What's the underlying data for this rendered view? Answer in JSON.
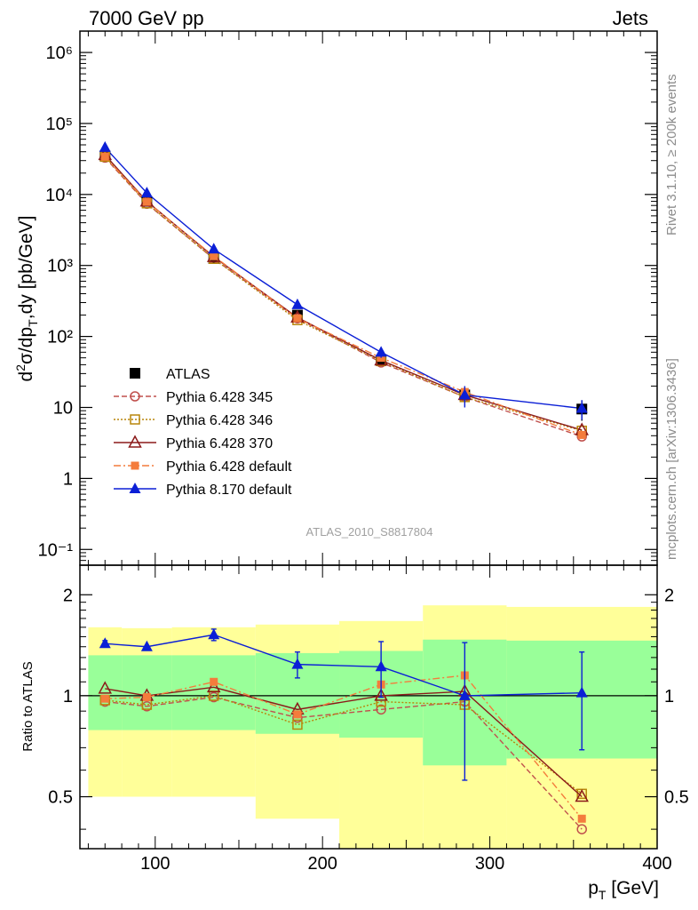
{
  "header": {
    "left": "7000 GeV pp",
    "right": "Jets"
  },
  "side_notes": {
    "rivet": "Rivet 3.1.10, ≥ 200k events",
    "source": "mcplots.cern.ch [arXiv:1306.3436]"
  },
  "watermark": "ATLAS_2010_S8817804",
  "chart_data": [
    {
      "type": "line",
      "panel": "main",
      "ylabel": "d²σ/dp_T,dy [pb/GeV]",
      "yscale": "log",
      "ylim": [
        0.06,
        2000000
      ],
      "xlim": [
        55,
        400
      ],
      "ytick_labels": [
        "10⁻¹",
        "1",
        "10",
        "10²",
        "10³",
        "10⁴",
        "10⁵",
        "10⁶"
      ],
      "series": [
        {
          "name": "ATLAS",
          "color": "#000000",
          "marker": "square-filled",
          "dash": "none",
          "x": [
            70,
            95,
            135,
            185,
            235,
            285,
            355
          ],
          "y": [
            35000,
            8000,
            1250,
            200,
            46,
            15,
            9.5
          ],
          "err": [
            3000,
            700,
            120,
            25,
            6,
            3,
            3
          ]
        },
        {
          "name": "Pythia 6.428 345",
          "color": "#c0504d",
          "marker": "circle-open",
          "dash": "6,3",
          "x": [
            70,
            95,
            135,
            185,
            235,
            285,
            355
          ],
          "y": [
            33000,
            7400,
            1240,
            180,
            43,
            14,
            3.9
          ]
        },
        {
          "name": "Pythia 6.428 346",
          "color": "#b8860b",
          "marker": "square-open",
          "dash": "2,2",
          "x": [
            70,
            95,
            135,
            185,
            235,
            285,
            355
          ],
          "y": [
            34000,
            7500,
            1240,
            170,
            45,
            14,
            4.7
          ]
        },
        {
          "name": "Pythia 6.428 370",
          "color": "#8b1a1a",
          "marker": "triangle-open",
          "dash": "none",
          "x": [
            70,
            95,
            135,
            185,
            235,
            285,
            355
          ],
          "y": [
            36000,
            8000,
            1320,
            185,
            46,
            15,
            4.8
          ]
        },
        {
          "name": "Pythia 6.428 default",
          "color": "#f47c3c",
          "marker": "square-filled-small",
          "dash": "8,3,2,3",
          "x": [
            70,
            95,
            135,
            185,
            235,
            285,
            355
          ],
          "y": [
            34000,
            7900,
            1350,
            180,
            50,
            16.5,
            4.1
          ]
        },
        {
          "name": "Pythia 8.170 default",
          "color": "#0b1fd6",
          "marker": "triangle-filled",
          "dash": "none",
          "x": [
            70,
            95,
            135,
            185,
            235,
            285,
            355
          ],
          "y": [
            46000,
            10500,
            1700,
            280,
            60,
            15,
            9.7
          ],
          "err": [
            0,
            0,
            0,
            0,
            10,
            5,
            3
          ]
        }
      ]
    },
    {
      "type": "line",
      "panel": "ratio",
      "ylabel": "Ratio to ATLAS",
      "xlabel": "p_T [GeV]",
      "xlim": [
        55,
        400
      ],
      "ylim": [
        0.35,
        2.45
      ],
      "ytick_labels": [
        "0.5",
        "1",
        "2"
      ],
      "xtick_labels": [
        "100",
        "200",
        "300",
        "400"
      ],
      "bands": [
        {
          "x0": 60,
          "x1": 80,
          "lo": 0.5,
          "hi": 1.6,
          "lo_inner": 0.79,
          "hi_inner": 1.32
        },
        {
          "x0": 80,
          "x1": 110,
          "lo": 0.5,
          "hi": 1.59,
          "lo_inner": 0.79,
          "hi_inner": 1.32
        },
        {
          "x0": 110,
          "x1": 160,
          "lo": 0.5,
          "hi": 1.6,
          "lo_inner": 0.79,
          "hi_inner": 1.32
        },
        {
          "x0": 160,
          "x1": 210,
          "lo": 0.43,
          "hi": 1.63,
          "lo_inner": 0.77,
          "hi_inner": 1.34
        },
        {
          "x0": 210,
          "x1": 260,
          "lo": 0.35,
          "hi": 1.67,
          "lo_inner": 0.75,
          "hi_inner": 1.36
        },
        {
          "x0": 260,
          "x1": 310,
          "lo": 0.35,
          "hi": 1.86,
          "lo_inner": 0.62,
          "hi_inner": 1.47
        },
        {
          "x0": 310,
          "x1": 400,
          "lo": 0.35,
          "hi": 1.84,
          "lo_inner": 0.65,
          "hi_inner": 1.46
        }
      ],
      "series": [
        {
          "name": "Pythia 6.428 345",
          "x": [
            70,
            95,
            135,
            185,
            235,
            285,
            355
          ],
          "y": [
            0.96,
            0.93,
            0.99,
            0.86,
            0.91,
            0.96,
            0.4
          ]
        },
        {
          "name": "Pythia 6.428 346",
          "x": [
            70,
            95,
            135,
            185,
            235,
            285,
            355
          ],
          "y": [
            0.97,
            0.94,
            1.0,
            0.82,
            0.96,
            0.94,
            0.51
          ]
        },
        {
          "name": "Pythia 6.428 370",
          "x": [
            70,
            95,
            135,
            185,
            235,
            285,
            355
          ],
          "y": [
            1.05,
            1.0,
            1.06,
            0.91,
            1.0,
            1.03,
            0.5
          ]
        },
        {
          "name": "Pythia 6.428 default",
          "x": [
            70,
            95,
            135,
            185,
            235,
            285,
            355
          ],
          "y": [
            0.98,
            0.99,
            1.1,
            0.88,
            1.08,
            1.15,
            0.43
          ]
        },
        {
          "name": "Pythia 8.170 default",
          "x": [
            70,
            95,
            135,
            185,
            235,
            285,
            355
          ],
          "y": [
            1.43,
            1.4,
            1.52,
            1.24,
            1.22,
            1.0,
            1.02
          ],
          "err": [
            0.03,
            0.0,
            0.06,
            0.11,
            0.23,
            0.44,
            0.33
          ]
        }
      ]
    }
  ]
}
